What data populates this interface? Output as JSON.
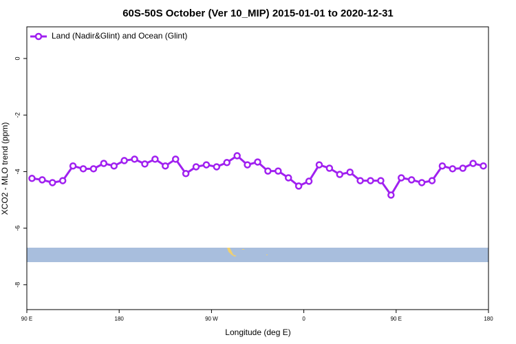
{
  "chart_data": {
    "type": "line",
    "title": "60S-50S October (Ver 10_MIP)   2015-01-01 to 2020-12-31",
    "x_label": "Longitude (deg E)",
    "y_label": "XCO2 - MLO trend (ppm)",
    "x": [
      95,
      105,
      115,
      125,
      135,
      145,
      155,
      165,
      175,
      185,
      195,
      205,
      215,
      225,
      235,
      245,
      255,
      265,
      275,
      285,
      295,
      305,
      315,
      325,
      335,
      345,
      355,
      365,
      375,
      385,
      395,
      405,
      415,
      425,
      435,
      445,
      455,
      465,
      475,
      485,
      495,
      505,
      515,
      525,
      535
    ],
    "series": [
      {
        "name": "Land (Nadir&Glint) and Ocean (Glint)",
        "color": "#a020f0",
        "values": [
          -4.24,
          -4.29,
          -4.39,
          -4.32,
          -3.8,
          -3.9,
          -3.9,
          -3.71,
          -3.8,
          -3.61,
          -3.56,
          -3.73,
          -3.56,
          -3.8,
          -3.56,
          -4.07,
          -3.83,
          -3.76,
          -3.83,
          -3.68,
          -3.44,
          -3.76,
          -3.66,
          -3.98,
          -3.98,
          -4.22,
          -4.51,
          -4.34,
          -3.76,
          -3.88,
          -4.1,
          -4.02,
          -4.32,
          -4.32,
          -4.32,
          -4.83,
          -4.22,
          -4.29,
          -4.39,
          -4.32,
          -3.8,
          -3.9,
          -3.88,
          -3.71,
          -3.8
        ]
      }
    ],
    "xlim": [
      90,
      540
    ],
    "xticks": [
      {
        "value": 90,
        "label": "90 E"
      },
      180,
      {
        "value": 270,
        "label": "90 W"
      },
      {
        "value": 360,
        "label": "0"
      },
      {
        "value": 450,
        "label": "90 E"
      },
      {
        "value": 540,
        "label": "180"
      }
    ],
    "ylim": [
      -8.88,
      1.12
    ],
    "yticks": [
      0,
      -2,
      -4,
      -6,
      -8
    ],
    "legend": "top-left"
  }
}
